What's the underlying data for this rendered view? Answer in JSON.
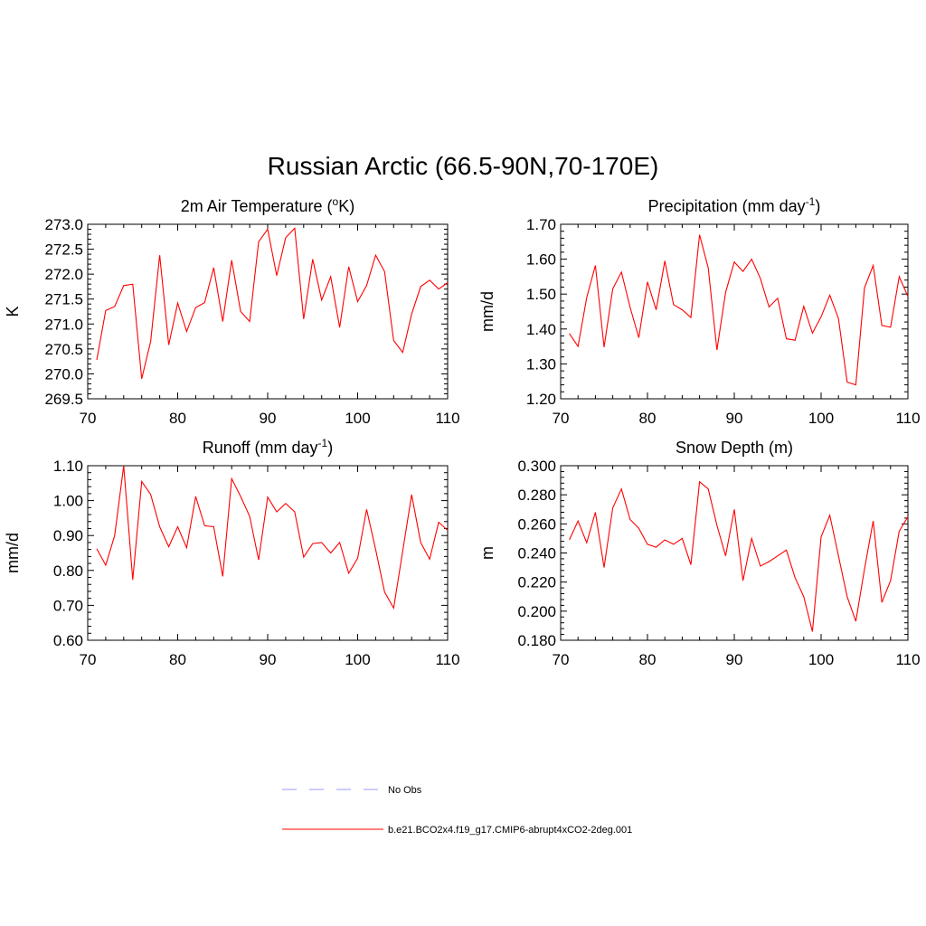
{
  "title": "Russian Arctic (66.5-90N,70-170E)",
  "legend": {
    "items": [
      {
        "label": "No Obs",
        "color": "#9999ff",
        "style": "dashed"
      },
      {
        "label": "b.e21.BCO2x4.f19_g17.CMIP6-abrupt4xCO2-2deg.001",
        "color": "#ff0000",
        "style": "solid"
      }
    ]
  },
  "chart_data": [
    {
      "type": "line",
      "title": "2m Air Temperature (oK)",
      "title_parts": [
        "2m Air Temperature (",
        "o",
        "K)"
      ],
      "ylabel": "K",
      "xlim": [
        70,
        110
      ],
      "ylim": [
        269.5,
        273.0
      ],
      "xticks": [
        "70",
        "80",
        "90",
        "100",
        "110"
      ],
      "yticks": [
        "269.5",
        "270.0",
        "270.5",
        "271.0",
        "271.5",
        "272.0",
        "272.5",
        "273.0"
      ],
      "series": [
        {
          "color": "#ff0000",
          "x": [
            71,
            72,
            73,
            74,
            75,
            76,
            77,
            78,
            79,
            80,
            81,
            82,
            83,
            84,
            85,
            86,
            87,
            88,
            89,
            90,
            91,
            92,
            93,
            94,
            95,
            96,
            97,
            98,
            99,
            100,
            101,
            102,
            103,
            104,
            105,
            106,
            107,
            108,
            109,
            110
          ],
          "values": [
            270.28,
            271.27,
            271.35,
            271.77,
            271.8,
            269.9,
            270.65,
            272.38,
            270.58,
            271.42,
            270.85,
            271.33,
            271.43,
            272.13,
            271.05,
            272.28,
            271.25,
            271.05,
            272.65,
            272.9,
            271.97,
            272.73,
            272.92,
            271.1,
            272.3,
            271.48,
            271.95,
            270.93,
            272.15,
            271.45,
            271.77,
            272.38,
            272.05,
            270.67,
            270.43,
            271.2,
            271.75,
            271.88,
            271.7,
            271.83
          ]
        }
      ]
    },
    {
      "type": "line",
      "title": "Precipitation (mm day-1)",
      "title_parts": [
        "Precipitation (mm day",
        "-1",
        ")"
      ],
      "ylabel": "mm/d",
      "xlim": [
        70,
        110
      ],
      "ylim": [
        1.2,
        1.7
      ],
      "xticks": [
        "70",
        "80",
        "90",
        "100",
        "110"
      ],
      "yticks": [
        "1.20",
        "1.30",
        "1.40",
        "1.50",
        "1.60",
        "1.70"
      ],
      "series": [
        {
          "color": "#ff0000",
          "x": [
            71,
            72,
            73,
            74,
            75,
            76,
            77,
            78,
            79,
            80,
            81,
            82,
            83,
            84,
            85,
            86,
            87,
            88,
            89,
            90,
            91,
            92,
            93,
            94,
            95,
            96,
            97,
            98,
            99,
            100,
            101,
            102,
            103,
            104,
            105,
            106,
            107,
            108,
            109,
            110
          ],
          "values": [
            1.387,
            1.35,
            1.49,
            1.582,
            1.348,
            1.515,
            1.563,
            1.462,
            1.375,
            1.535,
            1.455,
            1.595,
            1.47,
            1.455,
            1.433,
            1.67,
            1.575,
            1.34,
            1.505,
            1.592,
            1.565,
            1.6,
            1.545,
            1.463,
            1.488,
            1.372,
            1.368,
            1.465,
            1.388,
            1.435,
            1.497,
            1.43,
            1.248,
            1.24,
            1.518,
            1.582,
            1.41,
            1.405,
            1.55,
            1.493
          ]
        }
      ]
    },
    {
      "type": "line",
      "title": "Runoff (mm day-1)",
      "title_parts": [
        "Runoff (mm day",
        "-1",
        ")"
      ],
      "ylabel": "mm/d",
      "xlim": [
        70,
        110
      ],
      "ylim": [
        0.6,
        1.1
      ],
      "xticks": [
        "70",
        "80",
        "90",
        "100",
        "110"
      ],
      "yticks": [
        "0.60",
        "0.70",
        "0.80",
        "0.90",
        "1.00",
        "1.10"
      ],
      "series": [
        {
          "color": "#ff0000",
          "x": [
            71,
            72,
            73,
            74,
            75,
            76,
            77,
            78,
            79,
            80,
            81,
            82,
            83,
            84,
            85,
            86,
            87,
            88,
            89,
            90,
            91,
            92,
            93,
            94,
            95,
            96,
            97,
            98,
            99,
            100,
            101,
            102,
            103,
            104,
            105,
            106,
            107,
            108,
            109,
            110
          ],
          "values": [
            0.862,
            0.815,
            0.9,
            1.1,
            0.773,
            1.055,
            1.018,
            0.925,
            0.868,
            0.925,
            0.865,
            1.012,
            0.928,
            0.925,
            0.783,
            1.063,
            1.012,
            0.955,
            0.83,
            1.01,
            0.968,
            0.992,
            0.968,
            0.838,
            0.877,
            0.88,
            0.85,
            0.88,
            0.792,
            0.835,
            0.975,
            0.86,
            0.738,
            0.692,
            0.855,
            1.017,
            0.88,
            0.832,
            0.938,
            0.915
          ]
        }
      ]
    },
    {
      "type": "line",
      "title": "Snow Depth (m)",
      "title_parts": [
        "Snow Depth (m)",
        "",
        ""
      ],
      "ylabel": "m",
      "xlim": [
        70,
        110
      ],
      "ylim": [
        0.18,
        0.3
      ],
      "xticks": [
        "70",
        "80",
        "90",
        "100",
        "110"
      ],
      "yticks": [
        "0.180",
        "0.200",
        "0.220",
        "0.240",
        "0.260",
        "0.280",
        "0.300"
      ],
      "series": [
        {
          "color": "#ff0000",
          "x": [
            71,
            72,
            73,
            74,
            75,
            76,
            77,
            78,
            79,
            80,
            81,
            82,
            83,
            84,
            85,
            86,
            87,
            88,
            89,
            90,
            91,
            92,
            93,
            94,
            95,
            96,
            97,
            98,
            99,
            100,
            101,
            102,
            103,
            104,
            105,
            106,
            107,
            108,
            109,
            110
          ],
          "values": [
            0.249,
            0.262,
            0.247,
            0.268,
            0.23,
            0.271,
            0.284,
            0.263,
            0.257,
            0.246,
            0.244,
            0.249,
            0.246,
            0.25,
            0.232,
            0.289,
            0.284,
            0.259,
            0.238,
            0.27,
            0.221,
            0.25,
            0.231,
            0.234,
            0.238,
            0.242,
            0.223,
            0.21,
            0.186,
            0.251,
            0.266,
            0.238,
            0.21,
            0.193,
            0.229,
            0.262,
            0.206,
            0.221,
            0.255,
            0.265
          ]
        }
      ]
    }
  ]
}
